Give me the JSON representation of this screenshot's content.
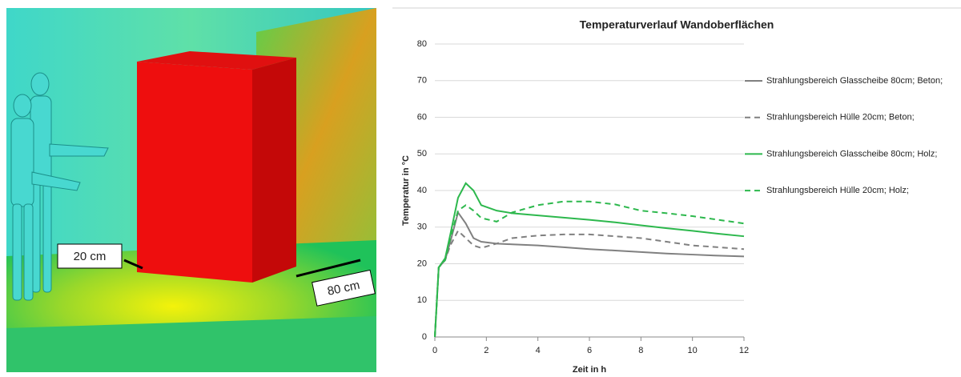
{
  "render_labels": [
    "20 cm",
    "80 cm"
  ],
  "chart_data": {
    "type": "line",
    "title": "Temperaturverlauf Wandoberflächen",
    "x_label": "Zeit in h",
    "y_label": "Temperatur in °C",
    "x": [
      0,
      0.15,
      0.4,
      0.6,
      0.9,
      1.2,
      1.5,
      1.8,
      2.4,
      3,
      4,
      5,
      6,
      7,
      8,
      9,
      10,
      11,
      12
    ],
    "series": [
      {
        "name": "Strahlungsbereich Glasscheibe 80cm; Beton;",
        "color": "#808080",
        "style": "solid",
        "values": [
          0,
          19,
          21,
          26,
          34,
          31,
          27,
          26,
          25.5,
          25.3,
          25,
          24.5,
          24,
          23.6,
          23.2,
          22.8,
          22.5,
          22.2,
          22
        ]
      },
      {
        "name": "Strahlungsbereich Hülle 20cm; Beton;",
        "color": "#808080",
        "style": "dashed",
        "values": [
          0,
          19,
          21,
          25,
          29,
          27,
          25,
          24.3,
          25.5,
          27,
          27.7,
          28,
          28,
          27.5,
          27,
          26,
          25,
          24.5,
          24
        ]
      },
      {
        "name": "Strahlungsbereich Glasscheibe 80cm; Holz;",
        "color": "#2db84d",
        "style": "solid",
        "values": [
          0,
          19,
          21.5,
          28,
          38,
          42,
          40,
          36,
          34.5,
          33.8,
          33.2,
          32.6,
          32,
          31.3,
          30.5,
          29.7,
          29,
          28.2,
          27.5
        ]
      },
      {
        "name": "Strahlungsbereich Hülle 20cm; Holz;",
        "color": "#2db84d",
        "style": "dashed",
        "values": [
          0,
          19,
          21,
          27,
          34.5,
          36,
          34.5,
          32.5,
          31.5,
          34,
          36,
          37,
          37,
          36.2,
          34.5,
          33.8,
          33,
          32,
          31
        ]
      }
    ],
    "xlim": [
      0,
      12
    ],
    "xticks": [
      0,
      2,
      4,
      6,
      8,
      10,
      12
    ],
    "ylim": [
      0,
      80
    ],
    "yticks": [
      0,
      10,
      20,
      30,
      40,
      50,
      60,
      70,
      80
    ],
    "grid": true,
    "legend": "right"
  }
}
